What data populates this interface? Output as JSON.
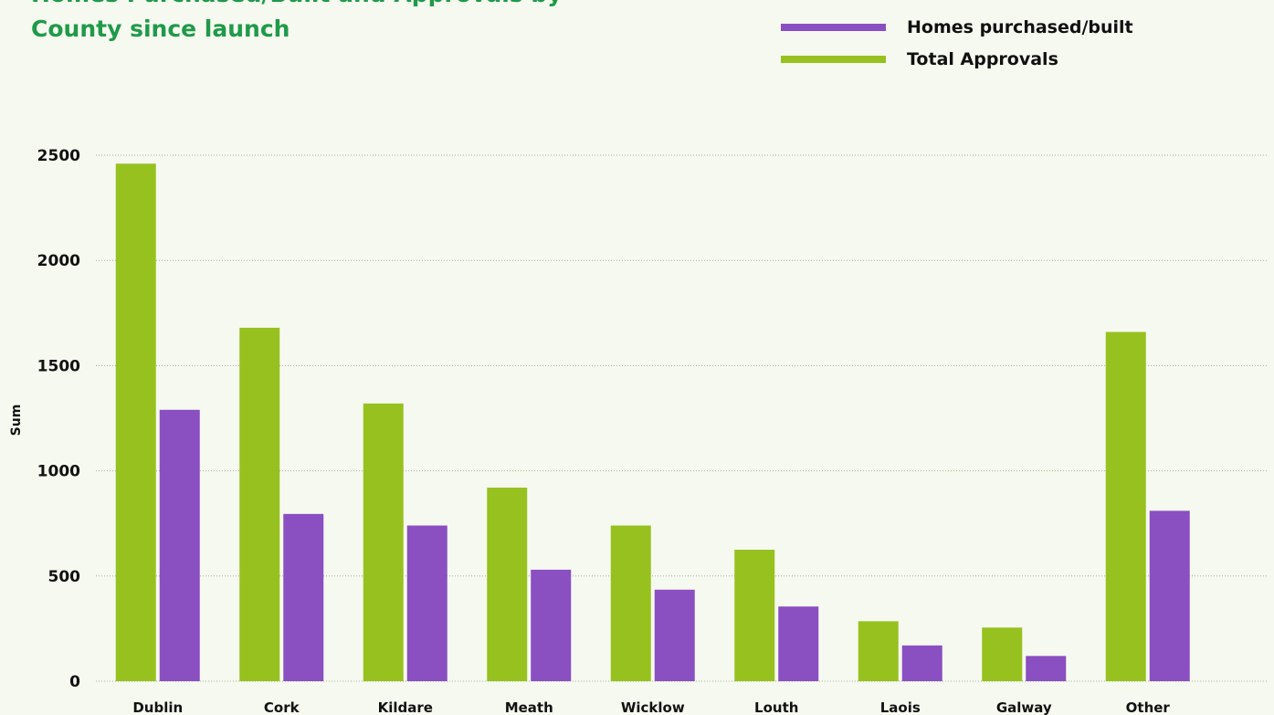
{
  "chart_data": {
    "type": "bar",
    "title_lines": [
      "Homes Purchased/Built and Approvals by",
      "County since launch"
    ],
    "y_label": "Sum",
    "categories": [
      "Dublin",
      "Cork",
      "Kildare",
      "Meath",
      "Wicklow",
      "Louth",
      "Laois",
      "Galway",
      "Other"
    ],
    "series": [
      {
        "name": "Homes purchased/built",
        "color": "#8a4fc0",
        "values": [
          1290,
          795,
          740,
          530,
          435,
          355,
          170,
          120,
          810
        ]
      },
      {
        "name": "Total Approvals",
        "color": "#97c11f",
        "values": [
          2460,
          1680,
          1320,
          920,
          740,
          625,
          285,
          255,
          1660
        ]
      }
    ],
    "ylim": [
      0,
      2500
    ],
    "yticks": [
      0,
      500,
      1000,
      1500,
      2000,
      2500
    ],
    "grid": true
  }
}
